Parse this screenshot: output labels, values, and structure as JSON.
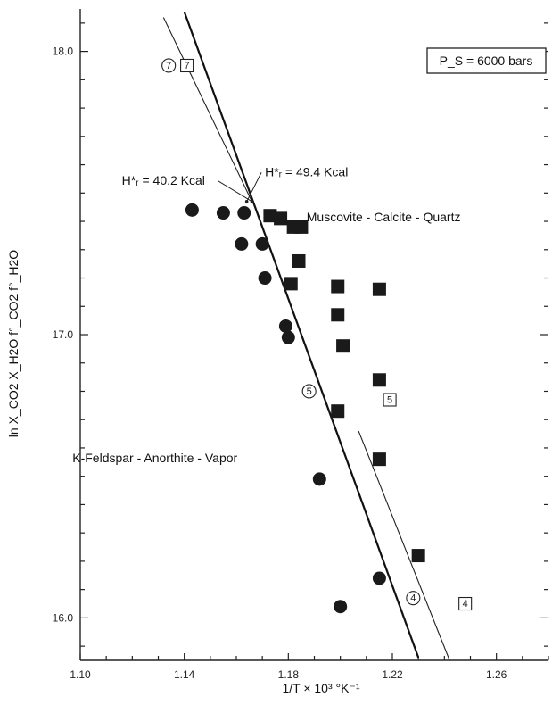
{
  "chart_data": {
    "type": "scatter",
    "title": "",
    "xlabel": "1/T × 10³ °K⁻¹",
    "ylabel": "ln X_CO2 X_H2O f°_CO2 f°_H2O",
    "xlim": [
      1.1,
      1.28
    ],
    "ylim": [
      15.85,
      18.15
    ],
    "x_ticks": [
      "1.10",
      "1.14",
      "1.18",
      "1.22",
      "1.26"
    ],
    "x_tick_values": [
      1.1,
      1.14,
      1.18,
      1.22,
      1.26
    ],
    "y_ticks": [
      "16.0",
      "17.0",
      "18.0"
    ],
    "y_tick_values": [
      16.0,
      17.0,
      18.0
    ],
    "y_minor_step": 0.1,
    "pressure_label": "P_S = 6000 bars",
    "series": [
      {
        "name": "K-Feldspar - Anorthite - Vapor",
        "marker": "filled-circle",
        "x": [
          1.143,
          1.155,
          1.163,
          1.162,
          1.17,
          1.171,
          1.179,
          1.18,
          1.192,
          1.2,
          1.215
        ],
        "y": [
          17.44,
          17.43,
          17.43,
          17.32,
          17.32,
          17.2,
          17.03,
          16.99,
          16.49,
          16.04,
          16.14
        ]
      },
      {
        "name": "Muscovite - Calcite - Quartz",
        "marker": "filled-square",
        "x": [
          1.173,
          1.177,
          1.182,
          1.185,
          1.184,
          1.181,
          1.199,
          1.199,
          1.201,
          1.215,
          1.215,
          1.199,
          1.215,
          1.23
        ],
        "y": [
          17.42,
          17.41,
          17.38,
          17.38,
          17.26,
          17.18,
          17.17,
          17.07,
          16.96,
          17.16,
          16.84,
          16.73,
          16.56,
          16.22
        ]
      }
    ],
    "lines": [
      {
        "label": "H*ᵣ = 49.4 Kcal",
        "style": "thick",
        "x": [
          1.14,
          1.23
        ],
        "y": [
          18.14,
          15.86
        ]
      },
      {
        "label": "H*ᵣ = 40.2 Kcal",
        "style": "thin",
        "x": [
          1.132,
          1.166
        ],
        "y": [
          18.12,
          17.47
        ],
        "x2": [
          1.207,
          1.242
        ],
        "y2": [
          16.66,
          15.85
        ]
      }
    ],
    "open_markers": [
      {
        "text": "7",
        "shape": "circle",
        "x": 1.134,
        "y": 17.95
      },
      {
        "text": "7",
        "shape": "square",
        "x": 1.141,
        "y": 17.95
      },
      {
        "text": "5",
        "shape": "circle",
        "x": 1.188,
        "y": 16.8
      },
      {
        "text": "5",
        "shape": "square",
        "x": 1.219,
        "y": 16.77
      },
      {
        "text": "4",
        "shape": "circle",
        "x": 1.228,
        "y": 16.07
      },
      {
        "text": "4",
        "shape": "square",
        "x": 1.248,
        "y": 16.05
      }
    ],
    "annotations": [
      {
        "text": "H*ᵣ = 40.2 Kcal",
        "x": 1.116,
        "y": 17.53,
        "arrow_to": [
          1.166,
          17.47
        ]
      },
      {
        "text": "H*ᵣ = 49.4 Kcal",
        "x": 1.171,
        "y": 17.56,
        "arrow_to": [
          1.164,
          17.47
        ]
      },
      {
        "text": "Muscovite - Calcite - Quartz",
        "x": 1.187,
        "y": 17.4
      },
      {
        "text": "K-Feldspar - Anorthite - Vapor",
        "x": 1.097,
        "y": 16.55
      }
    ]
  }
}
